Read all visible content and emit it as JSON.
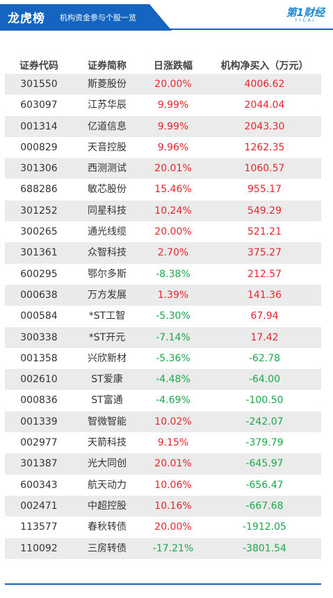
{
  "header": {
    "title": "龙虎榜",
    "subtitle": "机构资金参与个股一览",
    "logo_main": "第1财经",
    "logo_sub": "YICAI"
  },
  "colors": {
    "banner": "#1565c0",
    "up": "#e8242b",
    "down": "#1aa84a"
  },
  "table": {
    "columns": [
      "证券代码",
      "证券简称",
      "日涨跌幅",
      "机构净买入（万元）"
    ],
    "rows": [
      {
        "code": "301550",
        "name": "斯菱股份",
        "change": "20.00%",
        "net": "4006.62"
      },
      {
        "code": "603097",
        "name": "江苏华辰",
        "change": "9.99%",
        "net": "2044.04"
      },
      {
        "code": "001314",
        "name": "亿道信息",
        "change": "9.99%",
        "net": "2043.30"
      },
      {
        "code": "000829",
        "name": "天音控股",
        "change": "9.96%",
        "net": "1262.35"
      },
      {
        "code": "301306",
        "name": "西测测试",
        "change": "20.01%",
        "net": "1060.57"
      },
      {
        "code": "688286",
        "name": "敏芯股份",
        "change": "15.46%",
        "net": "955.17"
      },
      {
        "code": "301252",
        "name": "同星科技",
        "change": "10.24%",
        "net": "549.29"
      },
      {
        "code": "300265",
        "name": "通光线缆",
        "change": "20.00%",
        "net": "521.21"
      },
      {
        "code": "301361",
        "name": "众智科技",
        "change": "2.70%",
        "net": "375.27"
      },
      {
        "code": "600295",
        "name": "鄂尔多斯",
        "change": "-8.38%",
        "net": "212.57"
      },
      {
        "code": "000638",
        "name": "万方发展",
        "change": "1.39%",
        "net": "141.36"
      },
      {
        "code": "000584",
        "name": "*ST工智",
        "change": "-5.30%",
        "net": "67.94"
      },
      {
        "code": "300338",
        "name": "*ST开元",
        "change": "-7.14%",
        "net": "17.42"
      },
      {
        "code": "001358",
        "name": "兴欣新材",
        "change": "-5.36%",
        "net": "-62.78"
      },
      {
        "code": "002610",
        "name": "ST爱康",
        "change": "-4.48%",
        "net": "-64.00"
      },
      {
        "code": "000836",
        "name": "ST富通",
        "change": "-4.69%",
        "net": "-100.50"
      },
      {
        "code": "001339",
        "name": "智微智能",
        "change": "10.02%",
        "net": "-242.07"
      },
      {
        "code": "002977",
        "name": "天箭科技",
        "change": "9.15%",
        "net": "-379.79"
      },
      {
        "code": "301387",
        "name": "光大同创",
        "change": "20.01%",
        "net": "-645.97"
      },
      {
        "code": "600343",
        "name": "航天动力",
        "change": "10.06%",
        "net": "-656.47"
      },
      {
        "code": "002471",
        "name": "中超控股",
        "change": "10.16%",
        "net": "-667.68"
      },
      {
        "code": "113577",
        "name": "春秋转债",
        "change": "20.00%",
        "net": "-1912.05"
      },
      {
        "code": "110092",
        "name": "三房转债",
        "change": "-17.21%",
        "net": "-3801.54"
      }
    ]
  }
}
